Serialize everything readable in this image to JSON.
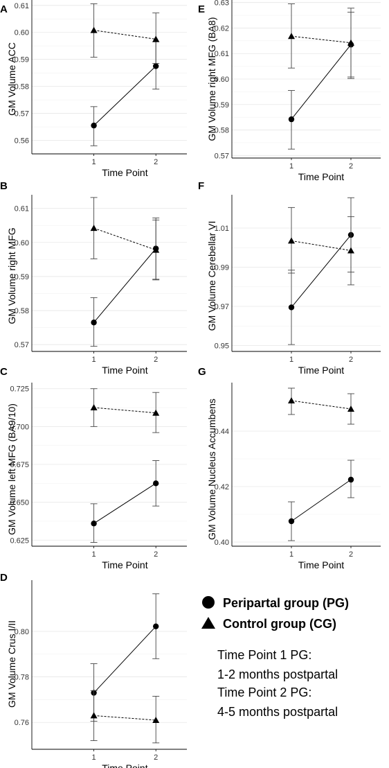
{
  "chart_data": [
    {
      "panel": "A",
      "type": "line",
      "xlabel": "Time Point",
      "ylabel": "GM Volume ACC",
      "categories": [
        "1",
        "2"
      ],
      "ylim": [
        0.555,
        0.612
      ],
      "yticks": [
        0.56,
        0.57,
        0.58,
        0.59,
        0.6,
        0.61
      ],
      "series": [
        {
          "name": "Peripartal group (PG)",
          "marker": "circle",
          "dash": "solid",
          "values": [
            0.5655,
            0.5875
          ],
          "err_low": [
            0.558,
            0.579
          ],
          "err_high": [
            0.5725,
            0.5965
          ]
        },
        {
          "name": "Control group (CG)",
          "marker": "triangle",
          "dash": "dashed",
          "values": [
            0.6008,
            0.5975
          ],
          "err_low": [
            0.5908,
            0.5885
          ],
          "err_high": [
            0.6106,
            0.6072
          ]
        }
      ]
    },
    {
      "panel": "E",
      "type": "line",
      "xlabel": "Time Point",
      "ylabel": "GM Volume right MFG (BA8)",
      "categories": [
        "1",
        "2"
      ],
      "ylim": [
        0.569,
        0.631
      ],
      "yticks": [
        0.57,
        0.58,
        0.59,
        0.6,
        0.61,
        0.62,
        0.63
      ],
      "series": [
        {
          "name": "Peripartal group (PG)",
          "marker": "circle",
          "dash": "solid",
          "values": [
            0.5842,
            0.6135
          ],
          "err_low": [
            0.5725,
            0.6008
          ],
          "err_high": [
            0.5955,
            0.6262
          ]
        },
        {
          "name": "Control group (CG)",
          "marker": "triangle",
          "dash": "dashed",
          "values": [
            0.6168,
            0.6142
          ],
          "err_low": [
            0.6043,
            0.6002
          ],
          "err_high": [
            0.6295,
            0.6278
          ]
        }
      ]
    },
    {
      "panel": "B",
      "type": "line",
      "xlabel": "Time Point",
      "ylabel": "GM Volume right MFG",
      "categories": [
        "1",
        "2"
      ],
      "ylim": [
        0.568,
        0.614
      ],
      "yticks": [
        0.57,
        0.58,
        0.59,
        0.6,
        0.61
      ],
      "series": [
        {
          "name": "Peripartal group (PG)",
          "marker": "circle",
          "dash": "solid",
          "values": [
            0.5765,
            0.5982
          ],
          "err_low": [
            0.5695,
            0.5892
          ],
          "err_high": [
            0.5838,
            0.6072
          ]
        },
        {
          "name": "Control group (CG)",
          "marker": "triangle",
          "dash": "dashed",
          "values": [
            0.6042,
            0.5978
          ],
          "err_low": [
            0.5952,
            0.589
          ],
          "err_high": [
            0.6132,
            0.6066
          ]
        }
      ]
    },
    {
      "panel": "F",
      "type": "line",
      "xlabel": "Time Point",
      "ylabel": "GM Volume Cerebellar VI",
      "categories": [
        "1",
        "2"
      ],
      "ylim": [
        0.947,
        1.027
      ],
      "yticks": [
        0.95,
        0.97,
        0.99,
        1.01
      ],
      "series": [
        {
          "name": "Peripartal group (PG)",
          "marker": "circle",
          "dash": "solid",
          "values": [
            0.9695,
            1.0065
          ],
          "err_low": [
            0.9505,
            0.9875
          ],
          "err_high": [
            0.9885,
            1.0255
          ]
        },
        {
          "name": "Control group (CG)",
          "marker": "triangle",
          "dash": "dashed",
          "values": [
            1.0035,
            0.9985
          ],
          "err_low": [
            0.987,
            0.981
          ],
          "err_high": [
            1.0205,
            1.0158
          ]
        }
      ]
    },
    {
      "panel": "C",
      "type": "line",
      "xlabel": "Time Point",
      "ylabel": "GM Volume left MFG (BA9/10)",
      "categories": [
        "1",
        "2"
      ],
      "ylim": [
        0.621,
        0.729
      ],
      "yticks": [
        0.625,
        0.65,
        0.675,
        0.7,
        0.725
      ],
      "yticklabels": [
        "0.625",
        "0.650",
        "0.675",
        "0.700",
        "0.725"
      ],
      "series": [
        {
          "name": "Peripartal group (PG)",
          "marker": "circle",
          "dash": "solid",
          "values": [
            0.636,
            0.6625
          ],
          "err_low": [
            0.6235,
            0.6475
          ],
          "err_high": [
            0.649,
            0.6775
          ]
        },
        {
          "name": "Control group (CG)",
          "marker": "triangle",
          "dash": "dashed",
          "values": [
            0.7125,
            0.709
          ],
          "err_low": [
            0.7,
            0.696
          ],
          "err_high": [
            0.725,
            0.7225
          ]
        }
      ]
    },
    {
      "panel": "G",
      "type": "line",
      "xlabel": "Time Point",
      "ylabel": "GM Volume Nucleus Accumbens",
      "categories": [
        "1",
        "2"
      ],
      "ylim": [
        0.3985,
        0.4575
      ],
      "yticks": [
        0.4,
        0.42,
        0.44
      ],
      "series": [
        {
          "name": "Peripartal group (PG)",
          "marker": "circle",
          "dash": "solid",
          "values": [
            0.4075,
            0.4225
          ],
          "err_low": [
            0.4005,
            0.416
          ],
          "err_high": [
            0.4145,
            0.4295
          ]
        },
        {
          "name": "Control group (CG)",
          "marker": "triangle",
          "dash": "dashed",
          "values": [
            0.451,
            0.448
          ],
          "err_low": [
            0.446,
            0.4425
          ],
          "err_high": [
            0.4555,
            0.4535
          ]
        }
      ]
    },
    {
      "panel": "D",
      "type": "line",
      "xlabel": "Time Point",
      "ylabel": "GM Volume Crus I/II",
      "categories": [
        "1",
        "2"
      ],
      "ylim": [
        0.7482,
        0.8225
      ],
      "yticks": [
        0.76,
        0.78,
        0.8
      ],
      "series": [
        {
          "name": "Peripartal group (PG)",
          "marker": "circle",
          "dash": "solid",
          "values": [
            0.773,
            0.8022
          ],
          "err_low": [
            0.7605,
            0.788
          ],
          "err_high": [
            0.7858,
            0.8165
          ]
        },
        {
          "name": "Control group (CG)",
          "marker": "triangle",
          "dash": "dashed",
          "values": [
            0.763,
            0.761
          ],
          "err_low": [
            0.752,
            0.751
          ],
          "err_high": [
            0.774,
            0.7715
          ]
        }
      ]
    }
  ],
  "legend": {
    "items": [
      {
        "marker": "circle",
        "label": "Peripartal group (PG)"
      },
      {
        "marker": "triangle",
        "label": "Control group (CG)"
      }
    ]
  },
  "notes": [
    "Time Point 1 PG:",
    "1-2 months postpartal",
    "Time Point 2 PG:",
    "4-5 months postpartal"
  ]
}
